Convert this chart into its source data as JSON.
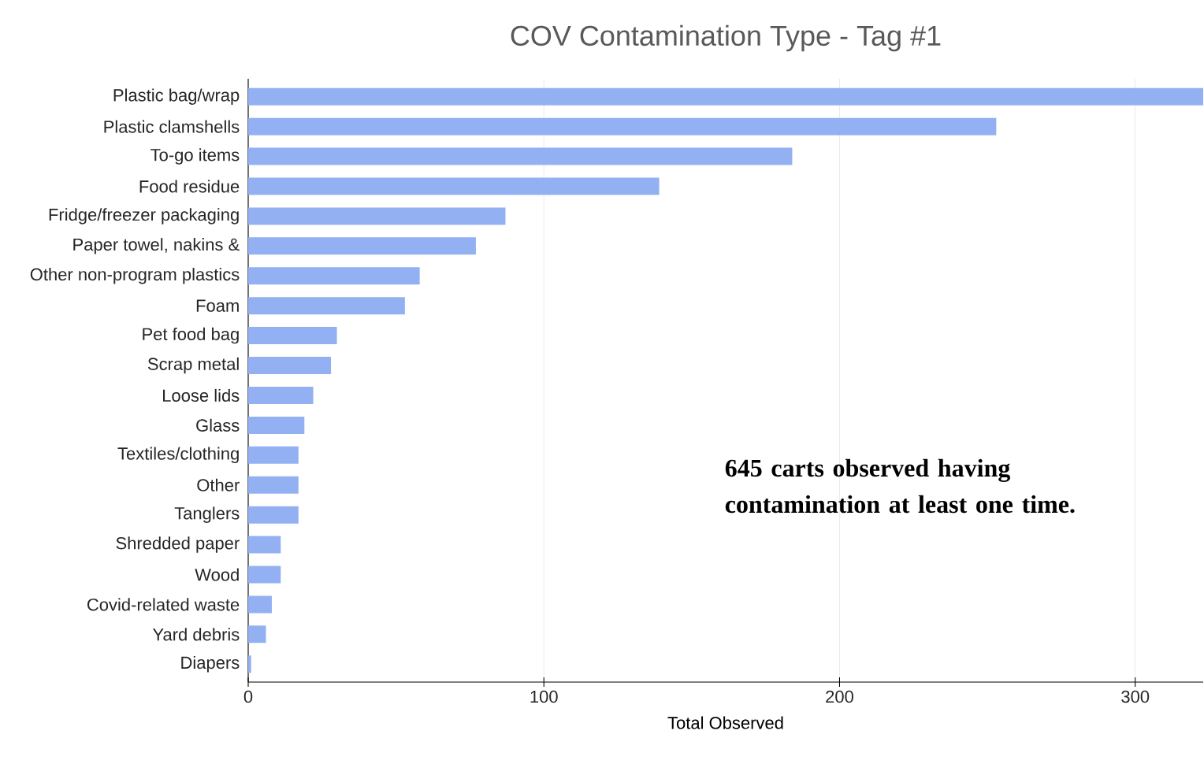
{
  "chart_data": {
    "type": "bar",
    "orientation": "horizontal",
    "title": "COV Contamination Type - Tag #1",
    "xlabel": "Total Observed",
    "categories": [
      "Plastic bag/wrap",
      "Plastic clamshells",
      "To-go items",
      "Food residue",
      "Fridge/freezer packaging",
      "Paper towel, nakins &",
      "Other non-program plastics",
      "Foam",
      "Pet food bag",
      "Scrap metal",
      "Loose lids",
      "Glass",
      "Textiles/clothing",
      "Other",
      "Tanglers",
      "Shredded paper",
      "Wood",
      "Covid-related waste",
      "Yard debris",
      "Diapers"
    ],
    "values": [
      323,
      253,
      184,
      139,
      87,
      77,
      58,
      53,
      30,
      28,
      22,
      19,
      17,
      17,
      17,
      11,
      11,
      8,
      6,
      1
    ],
    "color": "#93b1f2",
    "xlim": [
      0,
      323
    ],
    "xticks": [
      0,
      100,
      200,
      300
    ],
    "grid": "x",
    "annotations": [
      "645 carts observed having contamination at least one time."
    ]
  }
}
